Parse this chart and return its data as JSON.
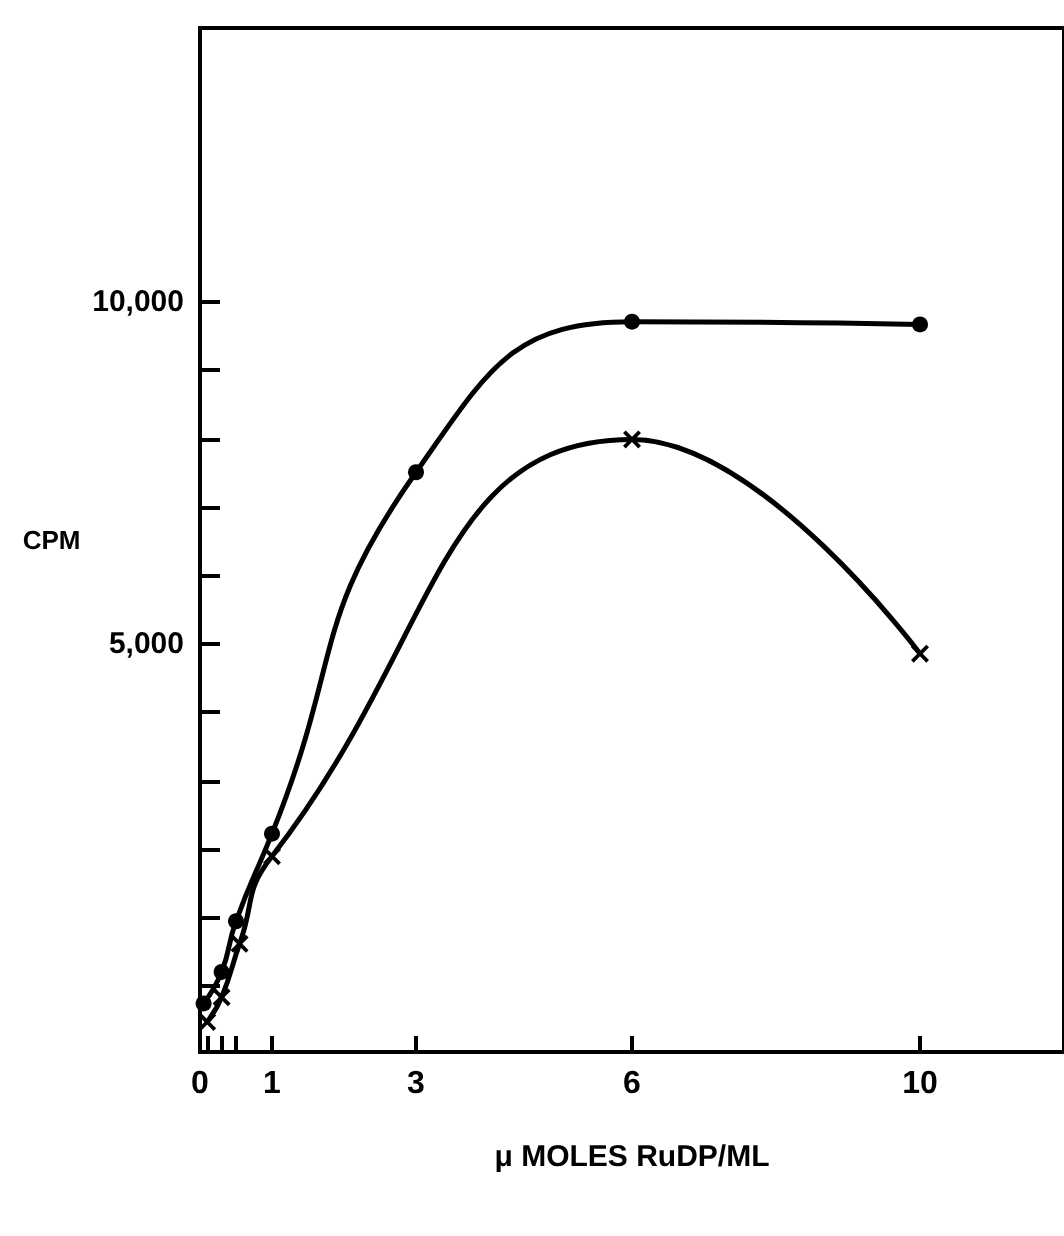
{
  "chart_data": {
    "type": "line",
    "xlabel": "μ MOLES RuDP/ML",
    "ylabel": "CPM",
    "xlim": [
      0,
      12
    ],
    "xticks": [
      0,
      {
        "value": 0.1,
        "label": null
      },
      {
        "value": 0.3,
        "label": null
      },
      {
        "value": 0.5,
        "label": null
      },
      1,
      3,
      6,
      10
    ],
    "ylim": [
      -960,
      14000
    ],
    "yticks": [
      {
        "value": 0,
        "label": null
      },
      {
        "value": 1000,
        "label": null
      },
      {
        "value": 2000,
        "label": null
      },
      {
        "value": 3000,
        "label": null
      },
      {
        "value": 4000,
        "label": null
      },
      {
        "value": 5000,
        "label": "5,000"
      },
      {
        "value": 6000,
        "label": null
      },
      {
        "value": 7000,
        "label": null
      },
      {
        "value": 8000,
        "label": null
      },
      {
        "value": 9000,
        "label": null
      },
      {
        "value": 10000,
        "label": "10,000"
      }
    ],
    "grid": false,
    "series": [
      {
        "color": "#000000",
        "marker": "circle",
        "x": [
          0.05,
          0.3,
          0.5,
          1,
          3,
          6,
          10
        ],
        "values": [
          -250,
          210,
          950,
          2230,
          7510,
          9710,
          9670
        ]
      },
      {
        "color": "#000000",
        "marker": "cross",
        "x": [
          0.1,
          0.3,
          0.55,
          1,
          6,
          10
        ],
        "values": [
          -520,
          -160,
          620,
          1900,
          7990,
          4860
        ]
      }
    ]
  }
}
